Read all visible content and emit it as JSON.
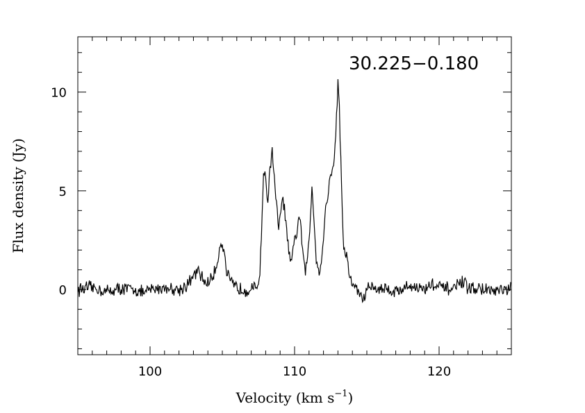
{
  "chart_data": {
    "type": "line",
    "title": "",
    "annotation": "30.225−0.180",
    "xlabel": "Velocity (km s",
    "xlabel_sup": "−1",
    "xlabel_close": ")",
    "ylabel": "Flux density (Jy)",
    "xlim": [
      95,
      125
    ],
    "ylim": [
      -3.3,
      12.8
    ],
    "x_ticks": [
      100,
      110,
      120
    ],
    "x_tick_labels": [
      "100",
      "110",
      "120"
    ],
    "y_ticks": [
      0,
      5,
      10
    ],
    "y_tick_labels": [
      "0",
      "5",
      "10"
    ],
    "x_minor_step": 1,
    "y_minor_step": 1,
    "grid": false,
    "line_color": "#000000",
    "series": [
      {
        "x": [
          95.0,
          96.0,
          97.0,
          98.0,
          99.0,
          99.6,
          100.0,
          101.0,
          102.0,
          102.5,
          102.8,
          103.0,
          103.3,
          103.6,
          103.9,
          104.2,
          104.5,
          104.7,
          104.85,
          105.0,
          105.15,
          105.3,
          105.6,
          106.0,
          106.5,
          107.0,
          107.4,
          107.6,
          107.75,
          107.85,
          107.95,
          108.05,
          108.15,
          108.3,
          108.45,
          108.6,
          108.75,
          108.9,
          109.05,
          109.2,
          109.35,
          109.5,
          109.7,
          109.85,
          110.0,
          110.15,
          110.3,
          110.45,
          110.6,
          110.75,
          110.9,
          111.05,
          111.2,
          111.35,
          111.5,
          111.7,
          111.9,
          112.1,
          112.3,
          112.5,
          112.7,
          112.85,
          113.0,
          113.1,
          113.2,
          113.3,
          113.4,
          113.55,
          113.7,
          113.85,
          114.0,
          114.2,
          114.4,
          114.6,
          114.8,
          115.0,
          115.3,
          115.6,
          116.0,
          117.0,
          118.0,
          119.0,
          119.5,
          120.0,
          121.0,
          121.5,
          122.0,
          123.0,
          124.0,
          125.0
        ],
        "y": [
          0.0,
          0.1,
          -0.1,
          0.05,
          0.0,
          -0.2,
          0.0,
          0.1,
          0.0,
          0.2,
          0.4,
          0.7,
          0.9,
          0.6,
          0.3,
          0.5,
          0.9,
          1.6,
          2.3,
          2.35,
          1.8,
          0.9,
          0.3,
          0.1,
          0.0,
          0.0,
          0.1,
          0.8,
          3.8,
          5.8,
          6.0,
          5.0,
          4.6,
          6.0,
          7.2,
          5.5,
          4.2,
          3.1,
          4.0,
          4.6,
          3.7,
          2.6,
          1.3,
          1.5,
          2.6,
          2.8,
          3.8,
          3.0,
          1.5,
          1.0,
          1.5,
          3.0,
          5.3,
          3.5,
          1.6,
          0.9,
          1.6,
          3.8,
          4.8,
          5.9,
          6.1,
          8.0,
          10.5,
          9.2,
          6.5,
          4.0,
          2.0,
          1.9,
          1.1,
          0.6,
          0.3,
          0.1,
          -0.1,
          -0.3,
          -0.5,
          0.0,
          0.2,
          0.0,
          0.1,
          -0.1,
          0.2,
          0.0,
          0.3,
          0.1,
          0.0,
          0.4,
          0.1,
          0.0,
          -0.1,
          0.0
        ]
      }
    ]
  }
}
